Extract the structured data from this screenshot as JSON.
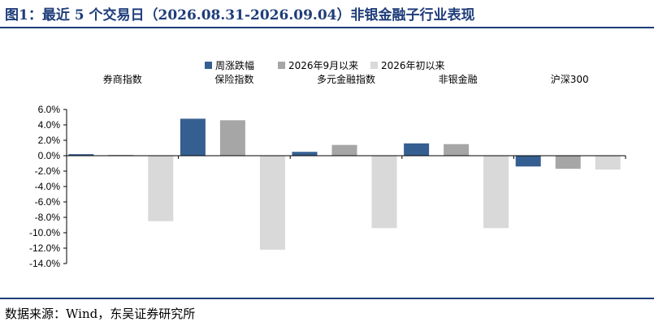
{
  "title": "图1：最近 5 个交易日（2026.08.31-2026.09.04）非银金融子行业表现",
  "source": "数据来源：Wind，东吴证券研究所",
  "colors": {
    "accent": "#1f3d7a",
    "series": [
      "#365f91",
      "#a6a6a6",
      "#d9d9d9"
    ]
  },
  "chart_data": {
    "type": "bar",
    "categories": [
      "券商指数",
      "保险指数",
      "多元金融指数",
      "非银金融",
      "沪深300"
    ],
    "series": [
      {
        "name": "周涨跌幅",
        "values": [
          0.2,
          4.8,
          0.5,
          1.6,
          -1.4
        ]
      },
      {
        "name": "2026年9月以来",
        "values": [
          0.1,
          4.6,
          1.4,
          1.5,
          -1.7
        ]
      },
      {
        "name": "2026年初以来",
        "values": [
          -8.5,
          -12.2,
          -9.4,
          -9.4,
          -1.8
        ]
      }
    ],
    "ylim": [
      -14,
      6
    ],
    "yticks": [
      "6.0%",
      "4.0%",
      "2.0%",
      "0.0%",
      "-2.0%",
      "-4.0%",
      "-6.0%",
      "-8.0%",
      "-10.0%",
      "-12.0%",
      "-14.0%"
    ],
    "legend_position": "top",
    "grid": false,
    "xlabel": "",
    "ylabel": ""
  }
}
